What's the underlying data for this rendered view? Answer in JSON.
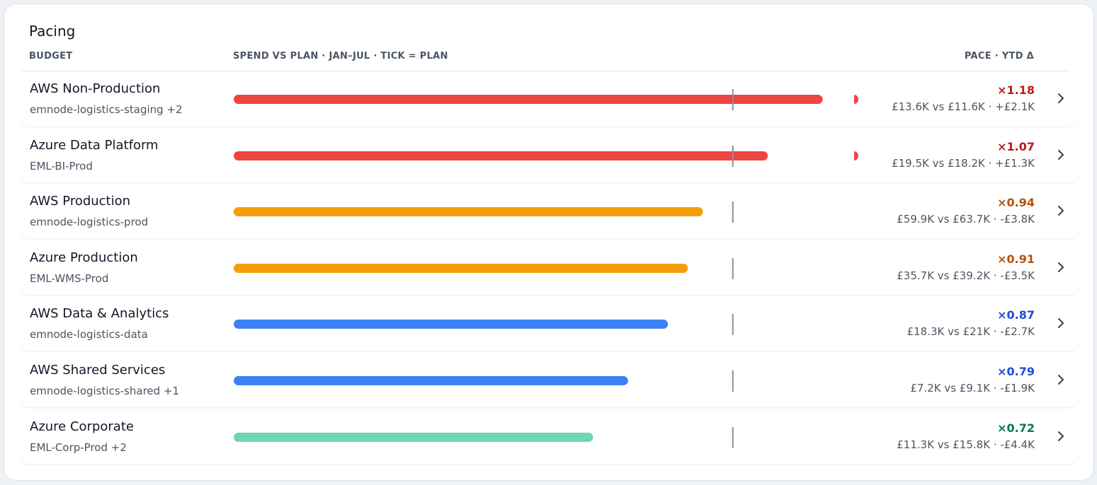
{
  "header": {
    "title": "Pacing",
    "columns": [
      "BUDGET",
      "SPEND VS PLAN · JAN–JUL · TICK = PLAN",
      "PACE · YTD Δ"
    ]
  },
  "scale": {
    "xlim": [
      0,
      1.25
    ],
    "xticks": [
      1
    ]
  },
  "rows": [
    {
      "name": "AWS Non-Production",
      "sub": "emnode-logistics-staging +2",
      "pace": {
        "value": 1.18,
        "label": "×1.18"
      },
      "detail": "£13.6K vs £11.6K · +£2.1K",
      "color": "#ef4444",
      "text_color": "#b91c1c"
    },
    {
      "name": "Azure Data Platform",
      "sub": "EML-BI-Prod",
      "pace": {
        "value": 1.07,
        "label": "×1.07"
      },
      "detail": "£19.5K vs £18.2K · +£1.3K",
      "color": "#ef4444",
      "text_color": "#b91c1c"
    },
    {
      "name": "AWS Production",
      "sub": "emnode-logistics-prod",
      "pace": {
        "value": 0.94,
        "label": "×0.94"
      },
      "detail": "£59.9K vs £63.7K · -£3.8K",
      "color": "#f59e0b",
      "text_color": "#b45309"
    },
    {
      "name": "Azure Production",
      "sub": "EML-WMS-Prod",
      "pace": {
        "value": 0.91,
        "label": "×0.91"
      },
      "detail": "£35.7K vs £39.2K · -£3.5K",
      "color": "#f59e0b",
      "text_color": "#b45309"
    },
    {
      "name": "AWS Data & Analytics",
      "sub": "emnode-logistics-data",
      "pace": {
        "value": 0.87,
        "label": "×0.87"
      },
      "detail": "£18.3K vs £21K · -£2.7K",
      "color": "#3b82f6",
      "text_color": "#1d4ed8"
    },
    {
      "name": "AWS Shared Services",
      "sub": "emnode-logistics-shared +1",
      "pace": {
        "value": 0.79,
        "label": "×0.79"
      },
      "detail": "£7.2K vs £9.1K · -£1.9K",
      "color": "#3b82f6",
      "text_color": "#1d4ed8"
    },
    {
      "name": "Azure Corporate",
      "sub": "EML-Corp-Prod +2",
      "pace": {
        "value": 0.72,
        "label": "×0.72"
      },
      "detail": "£11.3K vs £15.8K · -£4.4K",
      "color": "#6ed6b0",
      "text_color": "#047857"
    }
  ]
}
